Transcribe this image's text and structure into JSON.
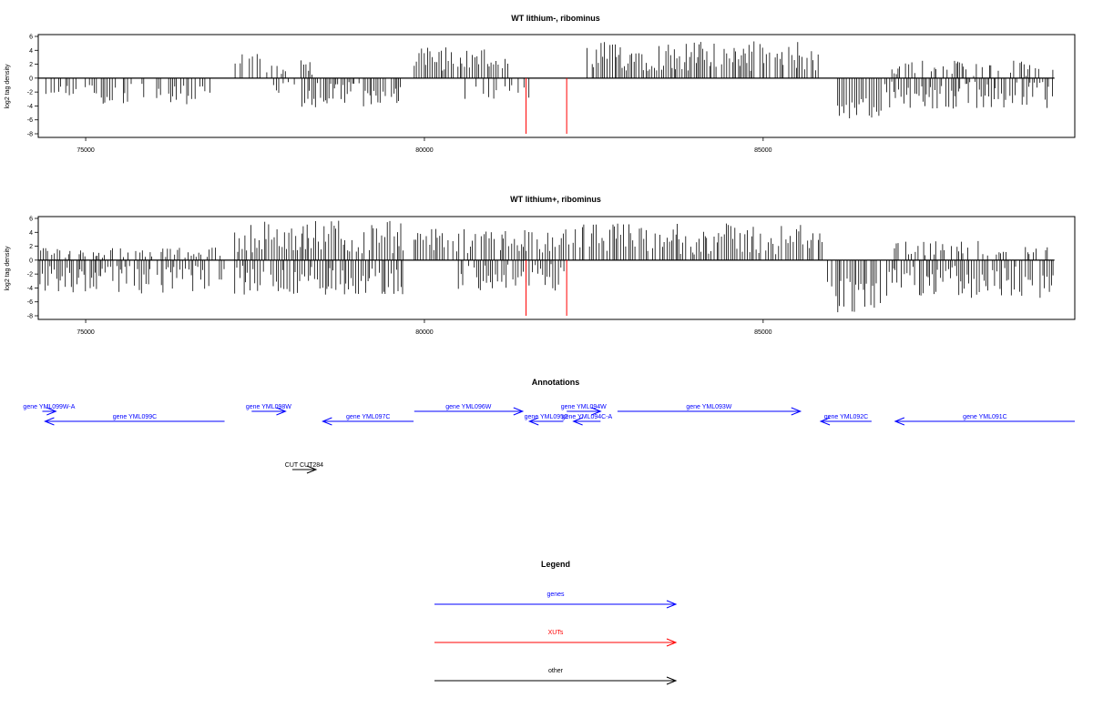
{
  "chart_data": [
    {
      "type": "bar",
      "title": "WT lithium-, ribominus",
      "ylabel": "log2 tag density",
      "xlabel": "",
      "xlim": [
        74300,
        89600
      ],
      "ylim": [
        -8,
        6
      ],
      "yticks": [
        6,
        4,
        2,
        0,
        -2,
        -4,
        -6,
        -8
      ],
      "xticks": [
        75000,
        80000,
        85000
      ],
      "bar_color": "#000000",
      "series": [
        {
          "name": "",
          "segments": [
            {
              "from": 74300,
              "to": 75200,
              "sign": -1,
              "min": 0.5,
              "max": 2.5
            },
            {
              "from": 75200,
              "to": 76900,
              "sign": -1,
              "min": 0.8,
              "max": 3.8
            },
            {
              "from": 77150,
              "to": 77650,
              "sign": 1,
              "min": 1.0,
              "max": 3.7
            },
            {
              "from": 77650,
              "to": 77950,
              "sign": 1,
              "min": 0.5,
              "max": 2.0
            },
            {
              "from": 77750,
              "to": 78100,
              "sign": -1,
              "min": 0.5,
              "max": 2.5
            },
            {
              "from": 78150,
              "to": 78350,
              "sign": 1,
              "min": 0.5,
              "max": 2.6
            },
            {
              "from": 78150,
              "to": 79650,
              "sign": -1,
              "min": 0.5,
              "max": 4.2
            },
            {
              "from": 79850,
              "to": 81250,
              "sign": 1,
              "min": 1.0,
              "max": 4.5
            },
            {
              "from": 80500,
              "to": 81600,
              "sign": -1,
              "min": 0.5,
              "max": 3.0
            },
            {
              "from": 82400,
              "to": 85850,
              "sign": 1,
              "min": 1.0,
              "max": 5.3
            },
            {
              "from": 86100,
              "to": 86750,
              "sign": -1,
              "min": 2.0,
              "max": 6.0
            },
            {
              "from": 86800,
              "to": 89300,
              "sign": -1,
              "min": 0.5,
              "max": 4.5
            },
            {
              "from": 86900,
              "to": 89300,
              "sign": 1,
              "min": 0.3,
              "max": 2.5
            }
          ]
        },
        {
          "name": "",
          "color": "#ff0000",
          "spikes": [
            {
              "x": 81500,
              "y": -8
            },
            {
              "x": 82100,
              "y": -8
            }
          ]
        }
      ]
    },
    {
      "type": "bar",
      "title": "WT lithium+, ribominus",
      "ylabel": "log2 tag density",
      "xlabel": "",
      "xlim": [
        74300,
        89600
      ],
      "ylim": [
        -8,
        6
      ],
      "yticks": [
        6,
        4,
        2,
        0,
        -2,
        -4,
        -6,
        -8
      ],
      "xticks": [
        75000,
        80000,
        85000
      ],
      "bar_color": "#000000",
      "series": [
        {
          "name": "",
          "segments": [
            {
              "from": 74300,
              "to": 77050,
              "sign": -1,
              "min": 0.8,
              "max": 4.8
            },
            {
              "from": 74300,
              "to": 77050,
              "sign": 1,
              "min": 0.3,
              "max": 1.8
            },
            {
              "from": 77200,
              "to": 79700,
              "sign": 1,
              "min": 1.0,
              "max": 5.7
            },
            {
              "from": 77200,
              "to": 79700,
              "sign": -1,
              "min": 0.8,
              "max": 5.0
            },
            {
              "from": 79850,
              "to": 82250,
              "sign": 1,
              "min": 1.0,
              "max": 4.5
            },
            {
              "from": 80500,
              "to": 82100,
              "sign": -1,
              "min": 0.5,
              "max": 4.5
            },
            {
              "from": 82250,
              "to": 85900,
              "sign": 1,
              "min": 0.8,
              "max": 5.3
            },
            {
              "from": 85950,
              "to": 86750,
              "sign": -1,
              "min": 2.5,
              "max": 7.9
            },
            {
              "from": 86800,
              "to": 89300,
              "sign": -1,
              "min": 0.8,
              "max": 5.6
            },
            {
              "from": 86900,
              "to": 89300,
              "sign": 1,
              "min": 0.5,
              "max": 2.8
            }
          ]
        },
        {
          "name": "",
          "color": "#ff0000",
          "spikes": [
            {
              "x": 81500,
              "y": -8
            },
            {
              "x": 82100,
              "y": -8
            }
          ]
        }
      ]
    }
  ],
  "annotations": {
    "title": "Annotations",
    "genes_color": "#0000ff",
    "other_color": "#000000",
    "features": [
      {
        "label": "gene YML099W-A",
        "strand": "+",
        "start": 74360,
        "end": 74560,
        "row": 1,
        "type": "gene"
      },
      {
        "label": "gene YML099C",
        "strand": "-",
        "start": 74400,
        "end": 77050,
        "row": 2,
        "type": "gene"
      },
      {
        "label": "gene YML098W",
        "strand": "+",
        "start": 77450,
        "end": 77950,
        "row": 1,
        "type": "gene"
      },
      {
        "label": "gene YML097C",
        "strand": "-",
        "start": 78500,
        "end": 79840,
        "row": 2,
        "type": "gene"
      },
      {
        "label": "gene YML096W",
        "strand": "+",
        "start": 79850,
        "end": 81450,
        "row": 1,
        "type": "gene"
      },
      {
        "label": "gene YML095C",
        "strand": "-",
        "start": 81550,
        "end": 82050,
        "row": 2,
        "type": "gene"
      },
      {
        "label": "gene YML094W",
        "strand": "+",
        "start": 82100,
        "end": 82600,
        "row": 1,
        "type": "gene"
      },
      {
        "label": "gene YML094C-A",
        "strand": "-",
        "start": 82200,
        "end": 82600,
        "row": 2,
        "type": "gene"
      },
      {
        "label": "gene YML093W",
        "strand": "+",
        "start": 82850,
        "end": 85550,
        "row": 1,
        "type": "gene"
      },
      {
        "label": "gene YML092C",
        "strand": "-",
        "start": 85850,
        "end": 86600,
        "row": 2,
        "type": "gene"
      },
      {
        "label": "gene YML091C",
        "strand": "-",
        "start": 86950,
        "end": 89600,
        "row": 2,
        "type": "gene"
      },
      {
        "label": "CUT CUT284",
        "strand": "+",
        "start": 78050,
        "end": 78400,
        "row": 4,
        "type": "other"
      }
    ]
  },
  "legend": {
    "title": "Legend",
    "entries": [
      {
        "label": "genes",
        "color": "#0000ff"
      },
      {
        "label": "XUTs",
        "color": "#ff0000"
      },
      {
        "label": "other",
        "color": "#000000"
      }
    ]
  }
}
